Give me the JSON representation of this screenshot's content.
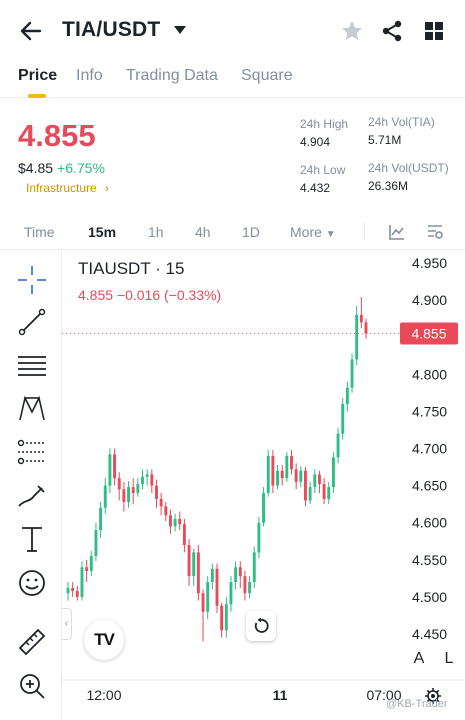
{
  "header": {
    "pair": "TIA/USDT",
    "icons": [
      "back-arrow-icon",
      "star-icon",
      "share-icon",
      "grid-menu-icon"
    ]
  },
  "tabs": [
    {
      "label": "Price",
      "active": true
    },
    {
      "label": "Info"
    },
    {
      "label": "Trading Data"
    },
    {
      "label": "Square"
    }
  ],
  "ticker": {
    "price": "4.855",
    "usd_value": "$4.85",
    "change_pct": "+6.75%",
    "category": "Infrastructure",
    "stats": {
      "high_label": "24h High",
      "high_value": "4.904",
      "low_label": "24h Low",
      "low_value": "4.432",
      "vol_tia_label": "24h Vol(TIA)",
      "vol_tia_value": "5.71M",
      "vol_usdt_label": "24h Vol(USDT)",
      "vol_usdt_value": "26.36M"
    }
  },
  "timeframes": {
    "items": [
      "Time",
      "15m",
      "1h",
      "4h",
      "1D",
      "More"
    ],
    "active": "15m"
  },
  "chart": {
    "symbol_line": "TIAUSDT · 15",
    "ohlc_line": "4.855  −0.016 (−0.33%)",
    "current_price_label": "4.855",
    "logo": "TV",
    "left_tab_glyph": "‹",
    "corner_buttons": [
      "A",
      "L"
    ],
    "watermark": "@KB-Trader",
    "colors": {
      "up": "#2ebd85",
      "down": "#e84a5a",
      "accent": "#f0b90b"
    }
  },
  "chart_data": {
    "type": "candlestick",
    "yticks": [
      "4.950",
      "4.900",
      "4.850",
      "4.800",
      "4.750",
      "4.700",
      "4.650",
      "4.600",
      "4.550",
      "4.500",
      "4.450"
    ],
    "ylim": [
      4.42,
      4.97
    ],
    "xticks": [
      "12:00",
      "11",
      "07:00"
    ],
    "candles": [
      [
        4.505,
        4.512,
        4.495,
        4.52
      ],
      [
        4.512,
        4.508,
        4.5,
        4.52
      ],
      [
        4.508,
        4.5,
        4.495,
        4.515
      ],
      [
        4.5,
        4.54,
        4.495,
        4.548
      ],
      [
        4.54,
        4.535,
        4.52,
        4.55
      ],
      [
        4.535,
        4.555,
        4.528,
        4.562
      ],
      [
        4.555,
        4.59,
        4.548,
        4.6
      ],
      [
        4.59,
        4.62,
        4.58,
        4.628
      ],
      [
        4.62,
        4.65,
        4.612,
        4.66
      ],
      [
        4.65,
        4.692,
        4.64,
        4.7
      ],
      [
        4.692,
        4.66,
        4.65,
        4.7
      ],
      [
        4.66,
        4.645,
        4.63,
        4.668
      ],
      [
        4.645,
        4.628,
        4.615,
        4.655
      ],
      [
        4.628,
        4.648,
        4.62,
        4.656
      ],
      [
        4.648,
        4.64,
        4.625,
        4.66
      ],
      [
        4.64,
        4.652,
        4.635,
        4.66
      ],
      [
        4.652,
        4.662,
        4.645,
        4.672
      ],
      [
        4.662,
        4.665,
        4.65,
        4.672
      ],
      [
        4.665,
        4.65,
        4.64,
        4.672
      ],
      [
        4.65,
        4.632,
        4.62,
        4.658
      ],
      [
        4.632,
        4.622,
        4.61,
        4.64
      ],
      [
        4.622,
        4.61,
        4.602,
        4.628
      ],
      [
        4.61,
        4.595,
        4.585,
        4.618
      ],
      [
        4.595,
        4.605,
        4.588,
        4.612
      ],
      [
        4.605,
        4.598,
        4.59,
        4.615
      ],
      [
        4.598,
        4.57,
        4.56,
        4.605
      ],
      [
        4.57,
        4.528,
        4.515,
        4.578
      ],
      [
        4.528,
        4.56,
        4.515,
        4.565
      ],
      [
        4.56,
        4.505,
        4.495,
        4.57
      ],
      [
        4.505,
        4.48,
        4.44,
        4.51
      ],
      [
        4.48,
        4.52,
        4.47,
        4.528
      ],
      [
        4.52,
        4.538,
        4.51,
        4.545
      ],
      [
        4.538,
        4.488,
        4.478,
        4.545
      ],
      [
        4.488,
        4.455,
        4.445,
        4.492
      ],
      [
        4.455,
        4.49,
        4.445,
        4.5
      ],
      [
        4.49,
        4.52,
        4.48,
        4.528
      ],
      [
        4.52,
        4.54,
        4.51,
        4.548
      ],
      [
        4.54,
        4.528,
        4.512,
        4.548
      ],
      [
        4.528,
        4.505,
        4.495,
        4.535
      ],
      [
        4.505,
        4.52,
        4.498,
        4.528
      ],
      [
        4.52,
        4.56,
        4.512,
        4.568
      ],
      [
        4.56,
        4.6,
        4.552,
        4.608
      ],
      [
        4.6,
        4.64,
        4.595,
        4.648
      ],
      [
        4.64,
        4.69,
        4.635,
        4.698
      ],
      [
        4.69,
        4.65,
        4.64,
        4.698
      ],
      [
        4.65,
        4.67,
        4.645,
        4.678
      ],
      [
        4.67,
        4.66,
        4.65,
        4.678
      ],
      [
        4.66,
        4.69,
        4.655,
        4.695
      ],
      [
        4.69,
        4.672,
        4.665,
        4.698
      ],
      [
        4.672,
        4.655,
        4.645,
        4.68
      ],
      [
        4.655,
        4.67,
        4.648,
        4.676
      ],
      [
        4.67,
        4.63,
        4.622,
        4.675
      ],
      [
        4.63,
        4.648,
        4.625,
        4.655
      ],
      [
        4.648,
        4.665,
        4.64,
        4.672
      ],
      [
        4.665,
        4.652,
        4.64,
        4.67
      ],
      [
        4.652,
        4.632,
        4.625,
        4.66
      ],
      [
        4.632,
        4.648,
        4.625,
        4.655
      ],
      [
        4.648,
        4.688,
        4.64,
        4.695
      ],
      [
        4.688,
        4.72,
        4.68,
        4.728
      ],
      [
        4.72,
        4.76,
        4.712,
        4.768
      ],
      [
        4.76,
        4.782,
        4.75,
        4.79
      ],
      [
        4.782,
        4.82,
        4.775,
        4.828
      ],
      [
        4.82,
        4.88,
        4.812,
        4.892
      ],
      [
        4.88,
        4.87,
        4.862,
        4.904
      ],
      [
        4.87,
        4.855,
        4.848,
        4.875
      ]
    ]
  }
}
